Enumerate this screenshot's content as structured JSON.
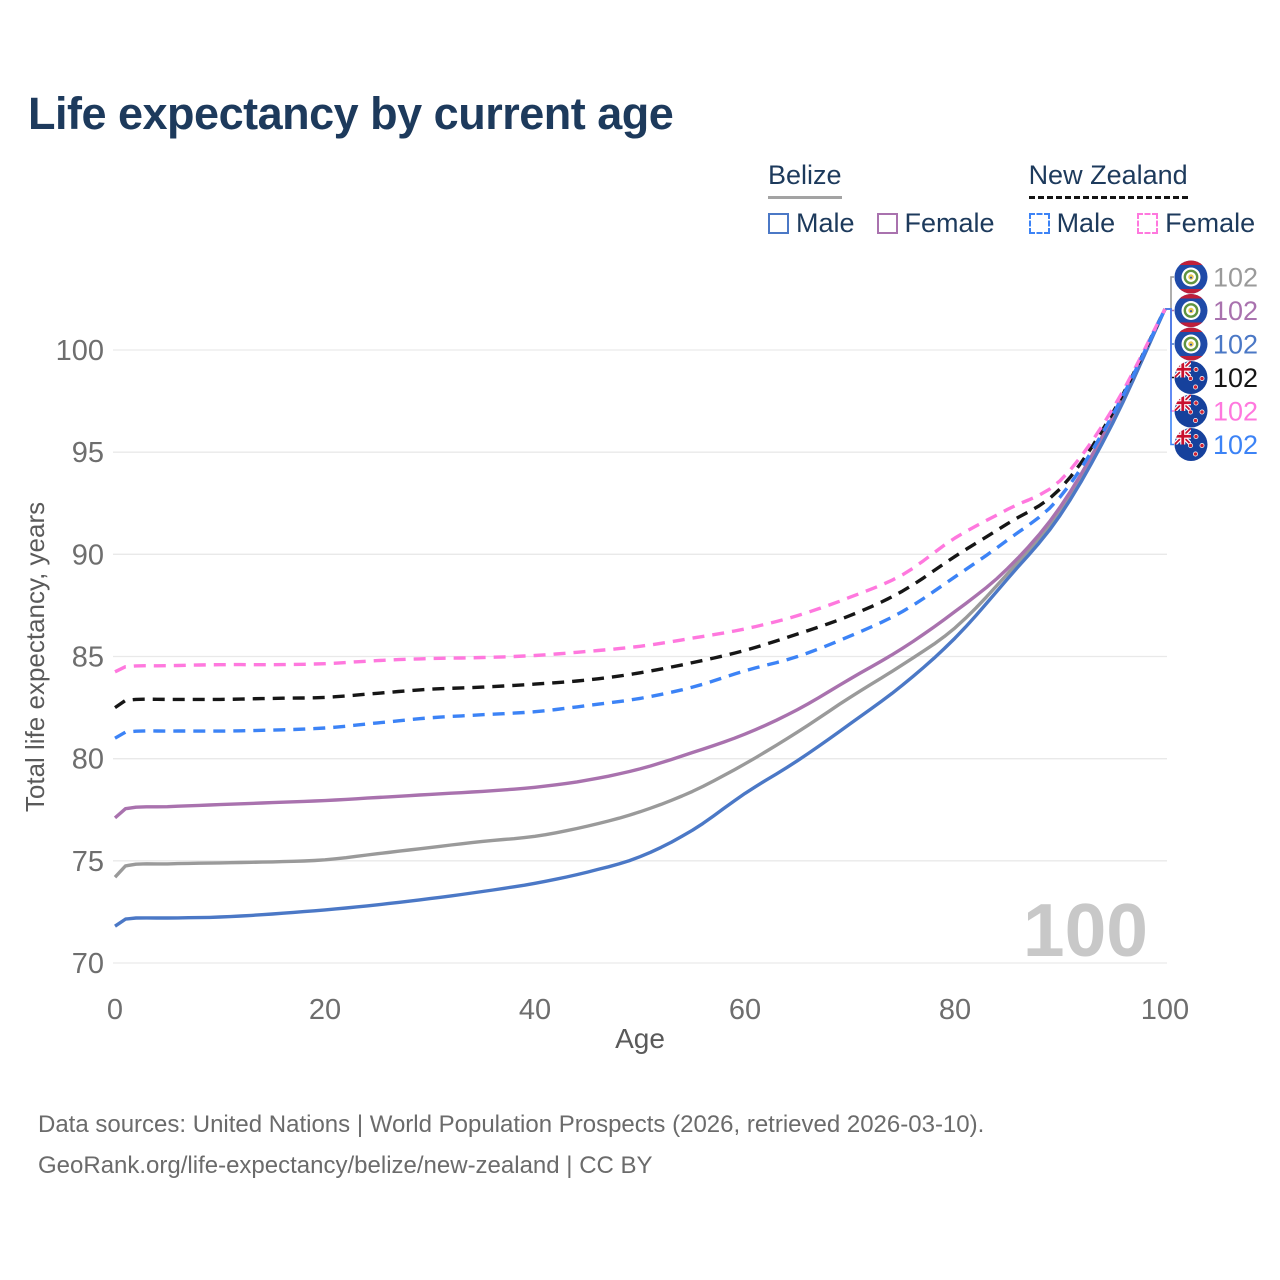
{
  "title": "Life expectancy by current age",
  "watermark": "100",
  "legend": {
    "groups": [
      {
        "label": "Belize",
        "underline_style": "solid",
        "underline_color": "#a3a3a3",
        "items": [
          {
            "label": "Male",
            "color": "#4b78c6",
            "dashed": false
          },
          {
            "label": "Female",
            "color": "#a972ae",
            "dashed": false
          }
        ]
      },
      {
        "label": "New Zealand",
        "underline_style": "dashed",
        "underline_color": "#141414",
        "items": [
          {
            "label": "Male",
            "color": "#3c83f6",
            "dashed": true
          },
          {
            "label": "Female",
            "color": "#ff78de",
            "dashed": true
          }
        ]
      }
    ]
  },
  "footer": {
    "line1": "Data sources: United Nations | World Population Prospects (2026, retrieved 2026-03-10).",
    "line2": "GeoRank.org/life-expectancy/belize/new-zealand | CC BY"
  },
  "chart_data": {
    "type": "line",
    "title": "Life expectancy by current age",
    "xlabel": "Age",
    "ylabel": "Total life expectancy, years",
    "xlim": [
      0,
      100
    ],
    "ylim": [
      70,
      103
    ],
    "x_ticks": [
      0,
      20,
      40,
      60,
      80,
      100
    ],
    "y_ticks": [
      70,
      75,
      80,
      85,
      90,
      95,
      100
    ],
    "grid": true,
    "grid_color": "#e9e9e9",
    "tick_color": "#6e6e6e",
    "axis_title_color": "#5a5a5a",
    "watermark_color": "#c8c8c8",
    "legend_position": "top-right",
    "ages": [
      0,
      1,
      5,
      10,
      15,
      20,
      25,
      30,
      35,
      40,
      45,
      50,
      55,
      60,
      65,
      70,
      75,
      80,
      85,
      90,
      95,
      100
    ],
    "series": [
      {
        "name": "Belize — All",
        "country": "belize",
        "sex": "all",
        "color": "#9a9a9a",
        "dashed": false,
        "flag_icon": "belize-flag-icon",
        "end_label": "102",
        "values": [
          74.2,
          74.75,
          74.85,
          74.9,
          74.95,
          75.05,
          75.35,
          75.65,
          75.95,
          76.2,
          76.7,
          77.4,
          78.4,
          79.75,
          81.3,
          83.0,
          84.6,
          86.4,
          89.05,
          92.15,
          96.6,
          102
        ]
      },
      {
        "name": "Belize — Female",
        "country": "belize",
        "sex": "female",
        "color": "#a972ae",
        "dashed": false,
        "flag_icon": "belize-flag-icon",
        "end_label": "102",
        "values": [
          77.1,
          77.55,
          77.65,
          77.75,
          77.85,
          77.95,
          78.1,
          78.25,
          78.4,
          78.6,
          78.95,
          79.5,
          80.3,
          81.2,
          82.4,
          83.9,
          85.4,
          87.2,
          89.3,
          92.3,
          96.7,
          102
        ]
      },
      {
        "name": "Belize — Male",
        "country": "belize",
        "sex": "male",
        "color": "#4b78c6",
        "dashed": false,
        "flag_icon": "belize-flag-icon",
        "end_label": "102",
        "values": [
          71.8,
          72.15,
          72.2,
          72.25,
          72.4,
          72.6,
          72.85,
          73.15,
          73.5,
          73.9,
          74.45,
          75.2,
          76.5,
          78.3,
          79.9,
          81.7,
          83.6,
          85.9,
          88.8,
          91.9,
          96.4,
          102
        ]
      },
      {
        "name": "New Zealand — All",
        "country": "new-zealand",
        "sex": "all",
        "color": "#161616",
        "dashed": true,
        "flag_icon": "new-zealand-flag-icon",
        "end_label": "102",
        "values": [
          82.5,
          82.85,
          82.9,
          82.9,
          82.95,
          83.0,
          83.2,
          83.4,
          83.5,
          83.65,
          83.85,
          84.2,
          84.7,
          85.3,
          86.1,
          87.0,
          88.2,
          89.9,
          91.5,
          93.2,
          96.9,
          102
        ]
      },
      {
        "name": "New Zealand — Female",
        "country": "new-zealand",
        "sex": "female",
        "color": "#ff78de",
        "dashed": true,
        "flag_icon": "new-zealand-flag-icon",
        "end_label": "102",
        "values": [
          84.25,
          84.5,
          84.55,
          84.6,
          84.6,
          84.65,
          84.8,
          84.9,
          84.95,
          85.05,
          85.25,
          85.5,
          85.9,
          86.35,
          87.0,
          87.9,
          89.0,
          90.8,
          92.2,
          93.6,
          97.1,
          102
        ]
      },
      {
        "name": "New Zealand — Male",
        "country": "new-zealand",
        "sex": "male",
        "color": "#3c83f6",
        "dashed": true,
        "flag_icon": "new-zealand-flag-icon",
        "end_label": "102",
        "values": [
          81.0,
          81.3,
          81.35,
          81.35,
          81.4,
          81.5,
          81.75,
          82.0,
          82.15,
          82.3,
          82.6,
          82.95,
          83.5,
          84.3,
          85.0,
          86.0,
          87.2,
          88.9,
          90.7,
          92.8,
          96.8,
          102
        ]
      }
    ]
  }
}
